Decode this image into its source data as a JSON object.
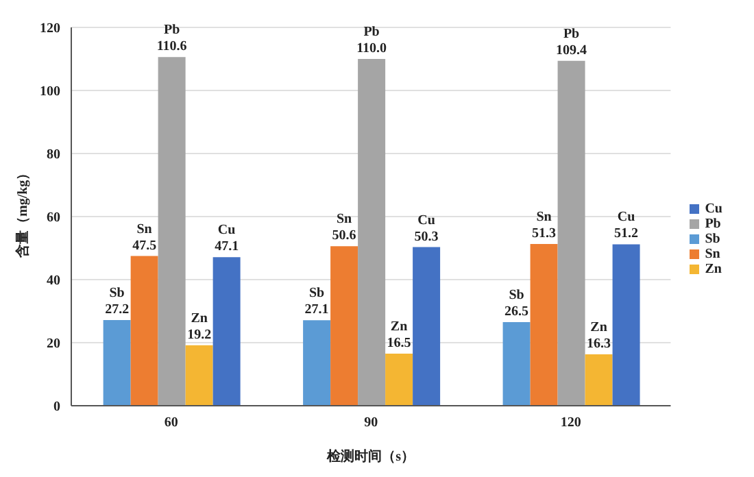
{
  "chart_data": {
    "type": "bar",
    "xlabel": "检测时间（s）",
    "ylabel": "含量（mg/kg）",
    "categories": [
      "60",
      "90",
      "120"
    ],
    "series": [
      {
        "name": "Sb",
        "color": "#5b9bd5",
        "values": [
          27.2,
          27.1,
          26.5
        ],
        "value_labels": [
          "27.2",
          "27.1",
          "26.5"
        ]
      },
      {
        "name": "Sn",
        "color": "#ed7d31",
        "values": [
          47.5,
          50.6,
          51.3
        ],
        "value_labels": [
          "47.5",
          "50.6",
          "51.3"
        ]
      },
      {
        "name": "Pb",
        "color": "#a5a5a5",
        "values": [
          110.6,
          110.0,
          109.4
        ],
        "value_labels": [
          "110.6",
          "110.0",
          "109.4"
        ]
      },
      {
        "name": "Zn",
        "color": "#f4b633",
        "values": [
          19.2,
          16.5,
          16.3
        ],
        "value_labels": [
          "19.2",
          "16.5",
          "16.3"
        ]
      },
      {
        "name": "Cu",
        "color": "#4472c4",
        "values": [
          47.1,
          50.3,
          51.2
        ],
        "value_labels": [
          "47.1",
          "50.3",
          "51.2"
        ]
      }
    ],
    "ylim": [
      0,
      120
    ],
    "yticks": [
      0,
      20,
      40,
      60,
      80,
      100,
      120
    ],
    "grid": "y",
    "legend": "right"
  }
}
